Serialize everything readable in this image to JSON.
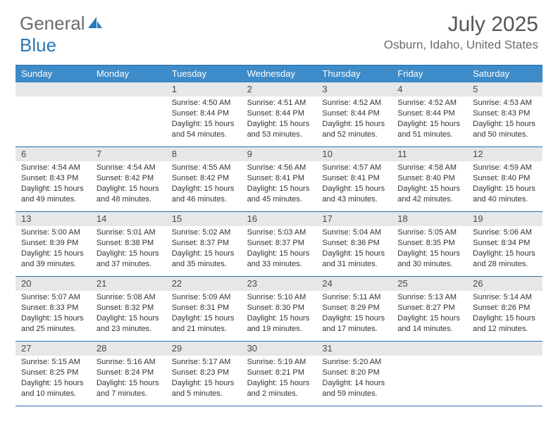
{
  "logo": {
    "part1": "General",
    "part2": "Blue"
  },
  "title": "July 2025",
  "location": "Osburn, Idaho, United States",
  "weekdays": [
    "Sunday",
    "Monday",
    "Tuesday",
    "Wednesday",
    "Thursday",
    "Friday",
    "Saturday"
  ],
  "header_bg": "#3d8bc8",
  "daynum_bg": "#e6e7e8",
  "border_color": "#2a6ea7",
  "lead_blanks": 2,
  "days": [
    {
      "n": 1,
      "sr": "4:50 AM",
      "ss": "8:44 PM",
      "dh": 15,
      "dm": 54
    },
    {
      "n": 2,
      "sr": "4:51 AM",
      "ss": "8:44 PM",
      "dh": 15,
      "dm": 53
    },
    {
      "n": 3,
      "sr": "4:52 AM",
      "ss": "8:44 PM",
      "dh": 15,
      "dm": 52
    },
    {
      "n": 4,
      "sr": "4:52 AM",
      "ss": "8:44 PM",
      "dh": 15,
      "dm": 51
    },
    {
      "n": 5,
      "sr": "4:53 AM",
      "ss": "8:43 PM",
      "dh": 15,
      "dm": 50
    },
    {
      "n": 6,
      "sr": "4:54 AM",
      "ss": "8:43 PM",
      "dh": 15,
      "dm": 49
    },
    {
      "n": 7,
      "sr": "4:54 AM",
      "ss": "8:42 PM",
      "dh": 15,
      "dm": 48
    },
    {
      "n": 8,
      "sr": "4:55 AM",
      "ss": "8:42 PM",
      "dh": 15,
      "dm": 46
    },
    {
      "n": 9,
      "sr": "4:56 AM",
      "ss": "8:41 PM",
      "dh": 15,
      "dm": 45
    },
    {
      "n": 10,
      "sr": "4:57 AM",
      "ss": "8:41 PM",
      "dh": 15,
      "dm": 43
    },
    {
      "n": 11,
      "sr": "4:58 AM",
      "ss": "8:40 PM",
      "dh": 15,
      "dm": 42
    },
    {
      "n": 12,
      "sr": "4:59 AM",
      "ss": "8:40 PM",
      "dh": 15,
      "dm": 40
    },
    {
      "n": 13,
      "sr": "5:00 AM",
      "ss": "8:39 PM",
      "dh": 15,
      "dm": 39
    },
    {
      "n": 14,
      "sr": "5:01 AM",
      "ss": "8:38 PM",
      "dh": 15,
      "dm": 37
    },
    {
      "n": 15,
      "sr": "5:02 AM",
      "ss": "8:37 PM",
      "dh": 15,
      "dm": 35
    },
    {
      "n": 16,
      "sr": "5:03 AM",
      "ss": "8:37 PM",
      "dh": 15,
      "dm": 33
    },
    {
      "n": 17,
      "sr": "5:04 AM",
      "ss": "8:36 PM",
      "dh": 15,
      "dm": 31
    },
    {
      "n": 18,
      "sr": "5:05 AM",
      "ss": "8:35 PM",
      "dh": 15,
      "dm": 30
    },
    {
      "n": 19,
      "sr": "5:06 AM",
      "ss": "8:34 PM",
      "dh": 15,
      "dm": 28
    },
    {
      "n": 20,
      "sr": "5:07 AM",
      "ss": "8:33 PM",
      "dh": 15,
      "dm": 25
    },
    {
      "n": 21,
      "sr": "5:08 AM",
      "ss": "8:32 PM",
      "dh": 15,
      "dm": 23
    },
    {
      "n": 22,
      "sr": "5:09 AM",
      "ss": "8:31 PM",
      "dh": 15,
      "dm": 21
    },
    {
      "n": 23,
      "sr": "5:10 AM",
      "ss": "8:30 PM",
      "dh": 15,
      "dm": 19
    },
    {
      "n": 24,
      "sr": "5:11 AM",
      "ss": "8:29 PM",
      "dh": 15,
      "dm": 17
    },
    {
      "n": 25,
      "sr": "5:13 AM",
      "ss": "8:27 PM",
      "dh": 15,
      "dm": 14
    },
    {
      "n": 26,
      "sr": "5:14 AM",
      "ss": "8:26 PM",
      "dh": 15,
      "dm": 12
    },
    {
      "n": 27,
      "sr": "5:15 AM",
      "ss": "8:25 PM",
      "dh": 15,
      "dm": 10
    },
    {
      "n": 28,
      "sr": "5:16 AM",
      "ss": "8:24 PM",
      "dh": 15,
      "dm": 7
    },
    {
      "n": 29,
      "sr": "5:17 AM",
      "ss": "8:23 PM",
      "dh": 15,
      "dm": 5
    },
    {
      "n": 30,
      "sr": "5:19 AM",
      "ss": "8:21 PM",
      "dh": 15,
      "dm": 2
    },
    {
      "n": 31,
      "sr": "5:20 AM",
      "ss": "8:20 PM",
      "dh": 14,
      "dm": 59
    }
  ],
  "labels": {
    "sunrise": "Sunrise:",
    "sunset": "Sunset:",
    "daylight": "Daylight:",
    "hours": "hours",
    "and": "and",
    "minutes": "minutes."
  }
}
